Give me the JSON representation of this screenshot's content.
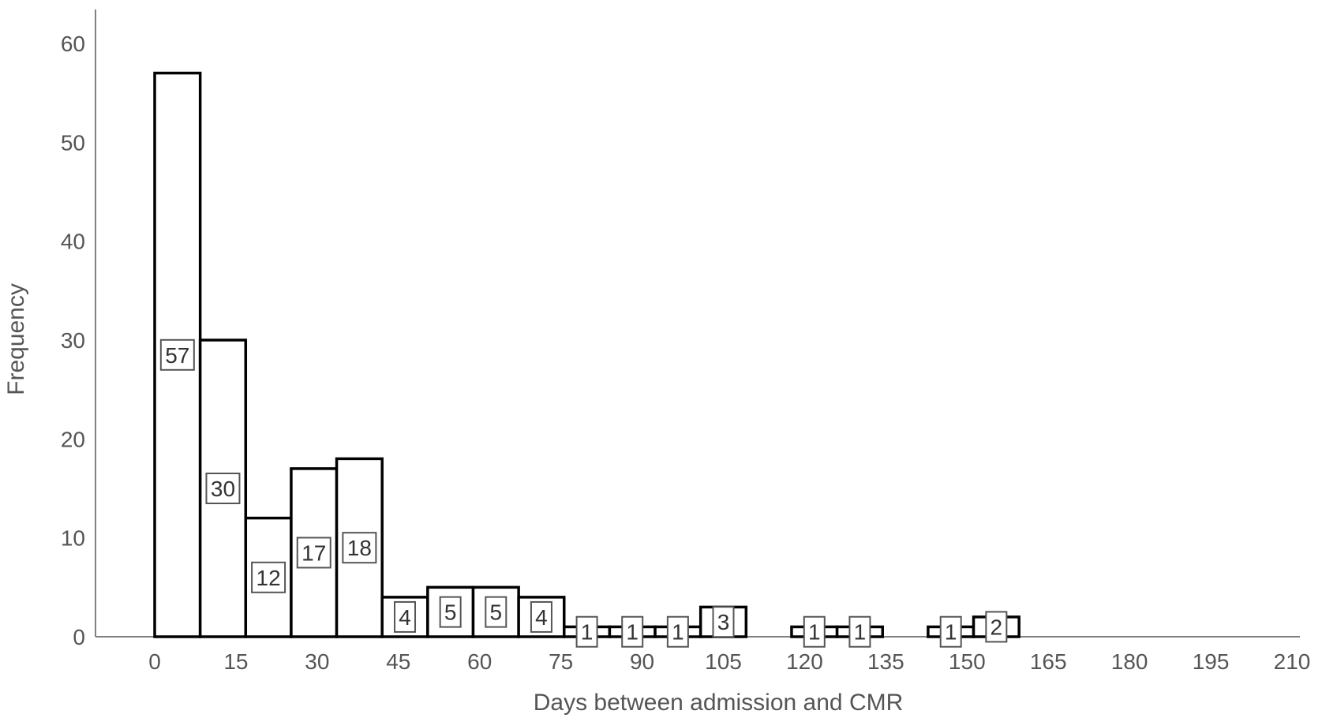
{
  "chart_data": {
    "type": "bar",
    "title": "",
    "xlabel": "Days between admission and CMR",
    "ylabel": "Frequency",
    "xlim": [
      0,
      210
    ],
    "ylim": [
      0,
      63
    ],
    "x_ticks": [
      "0",
      "15",
      "30",
      "45",
      "60",
      "75",
      "90",
      "105",
      "120",
      "135",
      "150",
      "165",
      "180",
      "195",
      "210"
    ],
    "y_ticks": [
      "0",
      "10",
      "20",
      "30",
      "40",
      "50",
      "60"
    ],
    "grid": false,
    "bins": [
      {
        "start": 0,
        "end": 8.4,
        "value": 57,
        "label": "57"
      },
      {
        "start": 8.4,
        "end": 16.8,
        "value": 30,
        "label": "30"
      },
      {
        "start": 16.8,
        "end": 25.2,
        "value": 12,
        "label": "12"
      },
      {
        "start": 25.2,
        "end": 33.6,
        "value": 17,
        "label": "17"
      },
      {
        "start": 33.6,
        "end": 42,
        "value": 18,
        "label": "18"
      },
      {
        "start": 42,
        "end": 50.4,
        "value": 4,
        "label": "4"
      },
      {
        "start": 50.4,
        "end": 58.8,
        "value": 5,
        "label": "5"
      },
      {
        "start": 58.8,
        "end": 67.2,
        "value": 5,
        "label": "5"
      },
      {
        "start": 67.2,
        "end": 75.6,
        "value": 4,
        "label": "4"
      },
      {
        "start": 75.6,
        "end": 84,
        "value": 1,
        "label": "1"
      },
      {
        "start": 84,
        "end": 92.4,
        "value": 1,
        "label": "1"
      },
      {
        "start": 92.4,
        "end": 100.8,
        "value": 1,
        "label": "1"
      },
      {
        "start": 100.8,
        "end": 109.2,
        "value": 3,
        "label": "3"
      },
      {
        "start": 117.6,
        "end": 126,
        "value": 1,
        "label": "1"
      },
      {
        "start": 126,
        "end": 134.4,
        "value": 1,
        "label": "1"
      },
      {
        "start": 142.8,
        "end": 151.2,
        "value": 1,
        "label": "1"
      },
      {
        "start": 151.2,
        "end": 159.6,
        "value": 2,
        "label": "2"
      }
    ]
  }
}
